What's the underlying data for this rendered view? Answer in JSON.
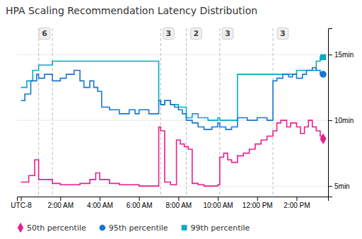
{
  "chart_data": {
    "type": "line",
    "title": "HPA Scaling Recommendation Latency Distribution",
    "xlim": [
      -0.2,
      15.6
    ],
    "xticks": [
      {
        "value": 0,
        "label": "UTC-8"
      },
      {
        "value": 2,
        "label": "2:00 AM"
      },
      {
        "value": 4,
        "label": "4:00 AM"
      },
      {
        "value": 6,
        "label": "6:00 AM"
      },
      {
        "value": 8,
        "label": "8:00 AM"
      },
      {
        "value": 10,
        "label": "10:00 AM"
      },
      {
        "value": 12,
        "label": "12:00 PM"
      },
      {
        "value": 14,
        "label": "2:00 PM"
      }
    ],
    "ylim": [
      4.2,
      17.0
    ],
    "yticks": [
      {
        "value": 5,
        "label": "5min"
      },
      {
        "value": 10,
        "label": "10min"
      },
      {
        "value": 15,
        "label": "15min"
      }
    ],
    "grid": true,
    "legend": "bottom",
    "line_style": "step",
    "vlines": [
      0.9,
      1.6,
      7.1,
      8.4,
      10.1,
      12.8
    ],
    "annotations": [
      {
        "text": "6",
        "x": 1.2,
        "y": 16.6
      },
      {
        "text": "3",
        "x": 7.5,
        "y": 16.6
      },
      {
        "text": "2",
        "x": 8.9,
        "y": 16.6
      },
      {
        "text": "3",
        "x": 10.5,
        "y": 16.6
      },
      {
        "text": "3",
        "x": 13.3,
        "y": 16.6
      }
    ],
    "series": [
      {
        "name": "50th percentile",
        "color": "#e91e8c",
        "marker": "diamond",
        "x": [
          0.0,
          0.4,
          0.7,
          0.9,
          1.6,
          2.0,
          2.5,
          3.0,
          3.5,
          3.8,
          4.0,
          4.5,
          5.0,
          5.5,
          5.8,
          6.0,
          6.5,
          6.8,
          7.0,
          7.1,
          7.3,
          7.6,
          7.9,
          8.1,
          8.3,
          8.5,
          8.7,
          9.0,
          9.3,
          9.5,
          9.8,
          10.0,
          10.1,
          10.3,
          10.5,
          10.7,
          11.0,
          11.3,
          11.6,
          11.9,
          12.2,
          12.5,
          12.8,
          13.0,
          13.2,
          13.5,
          13.7,
          14.0,
          14.2,
          14.4,
          14.6,
          14.8,
          15.0,
          15.2,
          15.35
        ],
        "values": [
          5.3,
          5.8,
          7.0,
          5.5,
          5.2,
          5.1,
          5.1,
          5.2,
          5.5,
          6.0,
          5.5,
          5.2,
          5.1,
          5.1,
          5.1,
          5.0,
          5.0,
          5.0,
          9.5,
          9.2,
          5.3,
          5.1,
          8.5,
          8.2,
          8.0,
          7.8,
          5.2,
          5.1,
          5.0,
          5.0,
          5.0,
          5.1,
          7.2,
          7.5,
          7.0,
          6.8,
          7.3,
          7.5,
          7.8,
          8.2,
          8.5,
          8.8,
          9.2,
          9.8,
          10.0,
          9.5,
          9.8,
          9.5,
          9.0,
          9.5,
          10.0,
          9.5,
          9.2,
          8.8,
          8.6
        ]
      },
      {
        "name": "95th percentile",
        "color": "#1976d2",
        "marker": "circle",
        "x": [
          0.0,
          0.2,
          0.5,
          0.8,
          0.9,
          1.2,
          1.6,
          2.0,
          2.3,
          2.7,
          3.0,
          3.2,
          3.5,
          3.7,
          3.9,
          4.1,
          4.5,
          5.0,
          5.5,
          5.8,
          6.0,
          6.5,
          6.8,
          7.0,
          7.1,
          7.3,
          7.6,
          7.8,
          8.0,
          8.2,
          8.4,
          8.7,
          9.0,
          9.3,
          9.7,
          10.0,
          10.1,
          10.4,
          10.7,
          11.0,
          11.5,
          12.0,
          12.5,
          12.8,
          13.0,
          13.3,
          13.6,
          13.8,
          14.0,
          14.3,
          14.5,
          14.8,
          15.0,
          15.2,
          15.35
        ],
        "values": [
          11.5,
          12.0,
          13.0,
          13.5,
          13.2,
          13.5,
          13.0,
          13.2,
          13.5,
          13.8,
          13.0,
          12.5,
          13.0,
          12.5,
          12.2,
          11.0,
          10.8,
          10.5,
          10.8,
          10.5,
          10.8,
          10.5,
          10.5,
          11.5,
          11.2,
          11.5,
          11.2,
          11.0,
          10.8,
          10.5,
          10.0,
          9.8,
          9.5,
          9.3,
          9.5,
          9.8,
          9.5,
          9.3,
          9.5,
          10.2,
          10.0,
          10.2,
          10.0,
          13.0,
          13.2,
          13.5,
          13.3,
          13.5,
          13.2,
          13.5,
          13.8,
          14.0,
          13.8,
          13.5,
          13.5
        ]
      },
      {
        "name": "99th percentile",
        "color": "#00acc1",
        "marker": "square",
        "x": [
          0.0,
          0.3,
          0.6,
          0.9,
          1.6,
          2.0,
          2.5,
          3.0,
          3.5,
          3.9,
          4.1,
          4.5,
          5.0,
          5.5,
          6.0,
          6.5,
          6.8,
          7.0,
          7.1,
          7.3,
          7.6,
          8.0,
          8.4,
          8.7,
          9.0,
          9.5,
          10.0,
          10.1,
          10.4,
          10.7,
          11.0,
          11.5,
          12.0,
          12.5,
          12.8,
          13.0,
          13.5,
          14.0,
          14.5,
          15.0,
          15.2,
          15.35
        ],
        "values": [
          12.5,
          13.0,
          13.8,
          14.2,
          14.5,
          14.5,
          14.5,
          14.5,
          14.5,
          14.5,
          14.5,
          14.5,
          14.5,
          14.5,
          14.5,
          14.5,
          14.5,
          11.5,
          11.2,
          11.5,
          11.2,
          11.0,
          10.2,
          10.5,
          10.2,
          10.0,
          10.2,
          10.0,
          10.0,
          10.0,
          13.5,
          13.5,
          13.5,
          13.5,
          13.5,
          13.5,
          13.5,
          13.8,
          13.8,
          14.5,
          14.8,
          14.8
        ]
      }
    ]
  }
}
